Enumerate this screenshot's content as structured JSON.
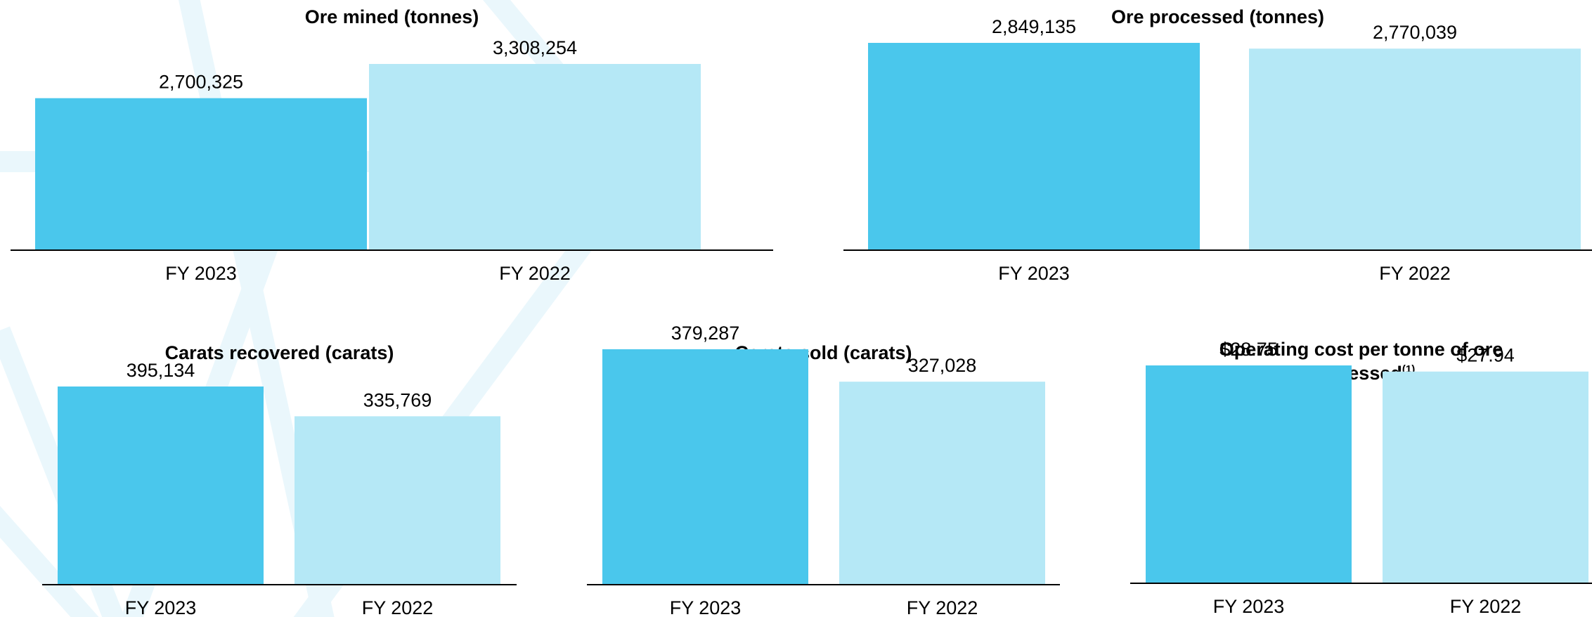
{
  "colors": {
    "current_year": "#4ac7ec",
    "prior_year": "#b5e8f6",
    "axis": "#000000",
    "background_lines": "#eaf7fc"
  },
  "chart_data": [
    {
      "type": "bar",
      "title": "Ore mined (tonnes)",
      "categories": [
        "FY 2023",
        "FY 2022"
      ],
      "values": [
        2700325,
        3308254
      ],
      "value_labels": [
        "2,700,325",
        "3,308,254"
      ],
      "xlabel": "",
      "ylabel": "",
      "ylim": [
        0,
        3500000
      ],
      "grid": false,
      "legend": "none"
    },
    {
      "type": "bar",
      "title": "Ore processed (tonnes)",
      "categories": [
        "FY 2023",
        "FY 2022"
      ],
      "values": [
        2849135,
        2770039
      ],
      "value_labels": [
        "2,849,135",
        "2,770,039"
      ],
      "xlabel": "",
      "ylabel": "",
      "ylim": [
        0,
        3000000
      ],
      "grid": false,
      "legend": "none"
    },
    {
      "type": "bar",
      "title": "Carats recovered (carats)",
      "categories": [
        "FY 2023",
        "FY 2022"
      ],
      "values": [
        395134,
        335769
      ],
      "value_labels": [
        "395,134",
        "335,769"
      ],
      "xlabel": "",
      "ylabel": "",
      "ylim": [
        0,
        500000
      ],
      "grid": false,
      "legend": "none"
    },
    {
      "type": "bar",
      "title": "Carats sold (carats)",
      "categories": [
        "FY 2023",
        "FY 2022"
      ],
      "values": [
        379287,
        327028
      ],
      "value_labels": [
        "379,287",
        "327,028"
      ],
      "xlabel": "",
      "ylabel": "",
      "ylim": [
        0,
        400000
      ],
      "grid": false,
      "legend": "none"
    },
    {
      "type": "bar",
      "title": "Operating cost per tonne of ore processed",
      "title_footnote": "(1)",
      "categories": [
        "FY 2023",
        "FY 2022"
      ],
      "values": [
        28.75,
        27.94
      ],
      "value_labels": [
        "$28.75",
        "$27.94"
      ],
      "xlabel": "",
      "ylabel": "",
      "ylim": [
        0,
        50
      ],
      "grid": false,
      "legend": "none"
    }
  ]
}
